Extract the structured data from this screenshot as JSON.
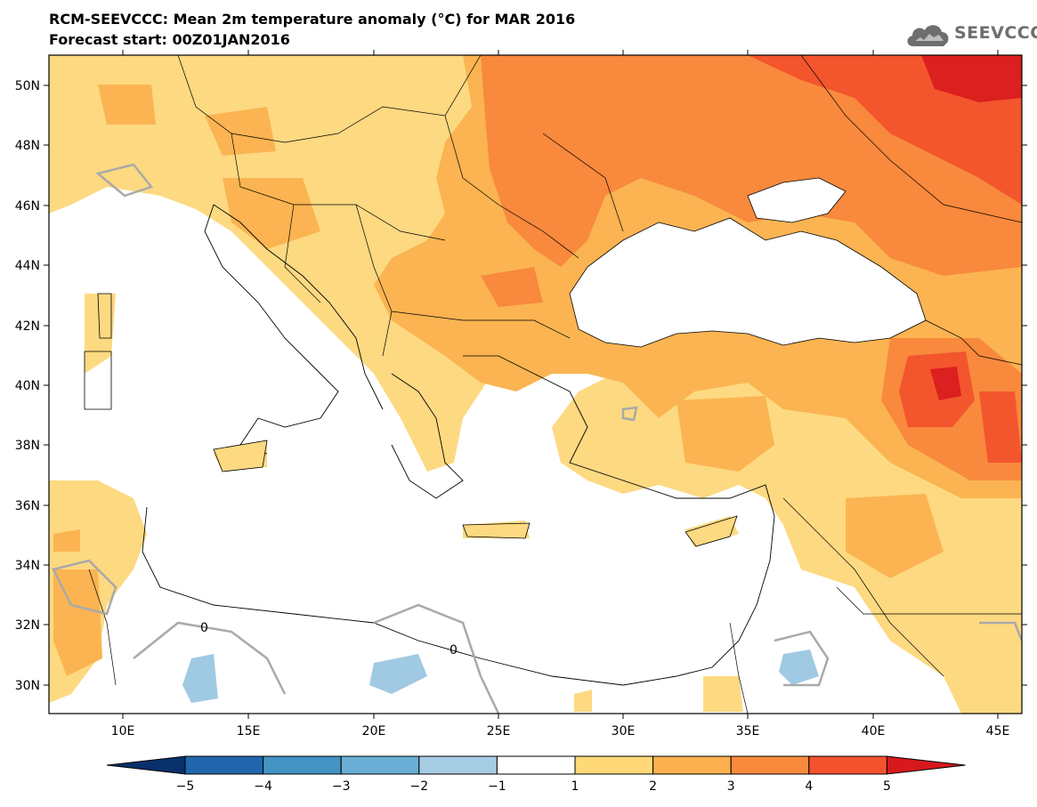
{
  "header": {
    "title": "RCM-SEEVCCC: Mean 2m temperature anomaly (°C) for MAR 2016",
    "subtitle": "Forecast start: 00Z01JAN2016"
  },
  "logo": {
    "text": "SEEVCCC",
    "icon": "cloud-icon"
  },
  "map": {
    "lat_labels": [
      "50N",
      "48N",
      "46N",
      "44N",
      "42N",
      "40N",
      "38N",
      "36N",
      "34N",
      "32N",
      "30N"
    ],
    "lon_labels": [
      "10E",
      "15E",
      "20E",
      "25E",
      "30E",
      "35E",
      "40E",
      "45E"
    ],
    "contour_label": "0"
  },
  "colorbar": {
    "ticks": [
      "−5",
      "−4",
      "−3",
      "−2",
      "−1",
      "1",
      "2",
      "3",
      "4",
      "5"
    ],
    "colors": [
      "#08306b",
      "#2166ac",
      "#4393c3",
      "#6aaed6",
      "#a6cce3",
      "#ffffff",
      "#ffd978",
      "#fdb04e",
      "#f98a3c",
      "#f4522e",
      "#d7191c"
    ]
  },
  "colors": {
    "land_cold": "#ffffff",
    "anom_1_2": "#fdd981",
    "anom_2_3": "#fbb451",
    "anom_3_4": "#f8893d",
    "anom_4_5": "#f3552d",
    "anom_5_plus": "#dc1f1f",
    "anom_m1_m2": "#a0c9e3"
  }
}
